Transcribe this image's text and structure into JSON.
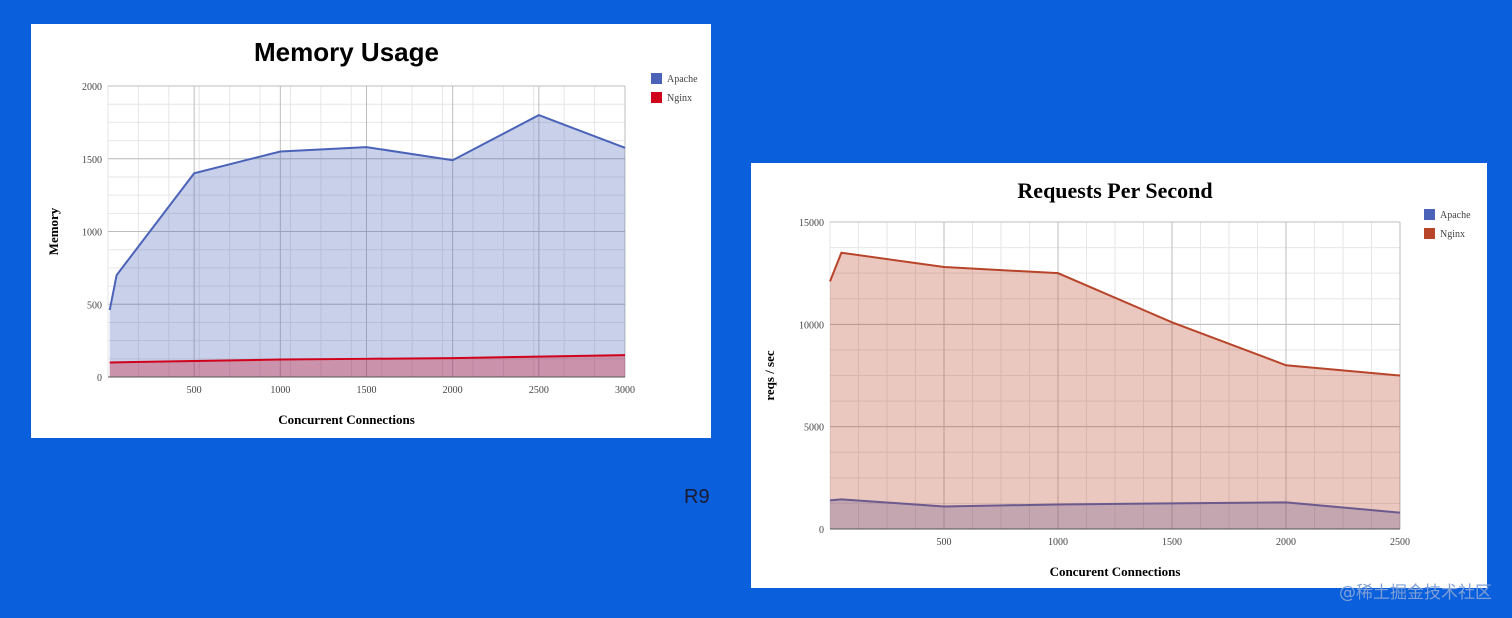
{
  "slide_label": "R9",
  "watermark": "@稀土掘金技术社区",
  "colors": {
    "background": "#0a5fdc",
    "apache_mem": "#4a63b8",
    "nginx_mem": "#d0021b",
    "apache_rps": "#4a63b8",
    "nginx_rps": "#b8442a"
  },
  "chart_data": [
    {
      "id": "mem",
      "type": "area",
      "title": "Memory Usage",
      "xlabel": "Concurrent Connections",
      "ylabel": "Memory",
      "xlim": [
        0,
        3000
      ],
      "ylim": [
        0,
        2000
      ],
      "x_ticks": [
        500,
        1000,
        1500,
        2000,
        2500,
        3000
      ],
      "y_ticks": [
        0,
        500,
        1000,
        1500,
        2000
      ],
      "grid": true,
      "legend_position": "top-right",
      "series": [
        {
          "name": "Apache",
          "color": "#4a63b8",
          "points": [
            [
              10,
              460
            ],
            [
              50,
              700
            ],
            [
              500,
              1400
            ],
            [
              1000,
              1550
            ],
            [
              1500,
              1580
            ],
            [
              2000,
              1490
            ],
            [
              2500,
              1800
            ],
            [
              3000,
              1575
            ]
          ]
        },
        {
          "name": "Nginx",
          "color": "#d0021b",
          "points": [
            [
              10,
              100
            ],
            [
              500,
              110
            ],
            [
              1000,
              120
            ],
            [
              1500,
              125
            ],
            [
              2000,
              130
            ],
            [
              2500,
              140
            ],
            [
              3000,
              150
            ]
          ]
        }
      ]
    },
    {
      "id": "rps",
      "type": "area",
      "title": "Requests Per Second",
      "xlabel": "Concurent Connections",
      "ylabel": "reqs / sec",
      "xlim": [
        0,
        2500
      ],
      "ylim": [
        0,
        15000
      ],
      "x_ticks": [
        500,
        1000,
        1500,
        2000,
        2500
      ],
      "y_ticks": [
        0,
        5000,
        10000,
        15000
      ],
      "grid": true,
      "legend_position": "top-right",
      "series": [
        {
          "name": "Apache",
          "color": "#4a63b8",
          "points": [
            [
              0,
              1400
            ],
            [
              50,
              1450
            ],
            [
              500,
              1100
            ],
            [
              1000,
              1200
            ],
            [
              1500,
              1250
            ],
            [
              2000,
              1300
            ],
            [
              2500,
              800
            ]
          ]
        },
        {
          "name": "Nginx",
          "color": "#b8442a",
          "points": [
            [
              0,
              12100
            ],
            [
              50,
              13500
            ],
            [
              500,
              12800
            ],
            [
              1000,
              12500
            ],
            [
              1500,
              10100
            ],
            [
              2000,
              8000
            ],
            [
              2500,
              7500
            ]
          ]
        }
      ]
    }
  ]
}
